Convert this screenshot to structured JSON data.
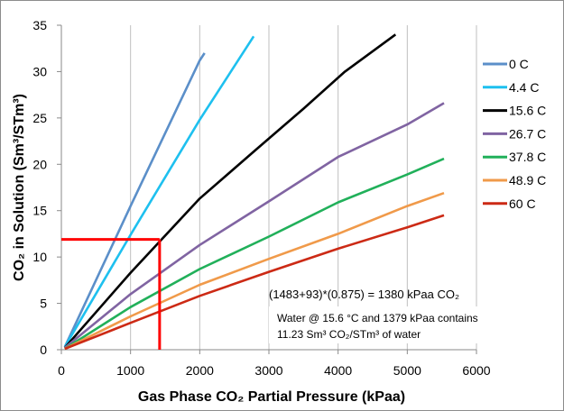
{
  "chart_data": {
    "type": "line",
    "xlabel": "Gas Phase CO₂ Partial Pressure (kPaa)",
    "ylabel": "CO₂ in Solution (Sm³/STm³)",
    "xlim": [
      0,
      6000
    ],
    "ylim": [
      0,
      35
    ],
    "xticks": [
      0,
      1000,
      2000,
      3000,
      4000,
      5000,
      6000
    ],
    "yticks": [
      0,
      5,
      10,
      15,
      20,
      25,
      30,
      35
    ],
    "grid": "vertical",
    "legend_position": "right",
    "series": [
      {
        "name": "0 C",
        "color": "#5b8fc9",
        "points": [
          [
            50,
            0.3
          ],
          [
            1000,
            15.5
          ],
          [
            2000,
            31.2
          ],
          [
            2070,
            32.0
          ]
        ]
      },
      {
        "name": "4.4 C",
        "color": "#1ec0ef",
        "points": [
          [
            50,
            0.3
          ],
          [
            1000,
            12.4
          ],
          [
            2000,
            24.8
          ],
          [
            2780,
            33.8
          ]
        ]
      },
      {
        "name": "15.6 C",
        "color": "#000000",
        "points": [
          [
            50,
            0.2
          ],
          [
            1000,
            8.3
          ],
          [
            2000,
            16.3
          ],
          [
            2800,
            21.5
          ],
          [
            3500,
            26.0
          ],
          [
            4100,
            30.0
          ],
          [
            4830,
            34.0
          ]
        ]
      },
      {
        "name": "26.7 C",
        "color": "#8064a2",
        "points": [
          [
            50,
            0.2
          ],
          [
            1000,
            6.0
          ],
          [
            2000,
            11.3
          ],
          [
            3000,
            16.0
          ],
          [
            4000,
            20.8
          ],
          [
            5000,
            24.3
          ],
          [
            5530,
            26.6
          ]
        ]
      },
      {
        "name": "37.8 C",
        "color": "#21b05a",
        "points": [
          [
            50,
            0.1
          ],
          [
            1000,
            4.6
          ],
          [
            2000,
            8.7
          ],
          [
            3000,
            12.2
          ],
          [
            4000,
            15.9
          ],
          [
            5000,
            18.9
          ],
          [
            5530,
            20.6
          ]
        ]
      },
      {
        "name": "48.9 C",
        "color": "#f09a4a",
        "points": [
          [
            50,
            0.1
          ],
          [
            1000,
            3.6
          ],
          [
            2000,
            7.0
          ],
          [
            3000,
            9.8
          ],
          [
            4000,
            12.5
          ],
          [
            5000,
            15.5
          ],
          [
            5530,
            16.9
          ]
        ]
      },
      {
        "name": "60 C",
        "color": "#cc2a15",
        "points": [
          [
            50,
            0.1
          ],
          [
            1000,
            2.9
          ],
          [
            2000,
            5.8
          ],
          [
            3000,
            8.4
          ],
          [
            4000,
            10.9
          ],
          [
            5000,
            13.2
          ],
          [
            5530,
            14.5
          ]
        ]
      }
    ],
    "annotations": {
      "guide_line": {
        "color": "#ff0000",
        "x": 1420,
        "y": 11.9
      },
      "calc_text": "(1483+93)*(0.875) = 1380 kPaa CO₂",
      "note_line1": "Water @ 15.6 °C and 1379 kPaa contains",
      "note_line2": "11.23 Sm³ CO₂/STm³ of water"
    }
  }
}
